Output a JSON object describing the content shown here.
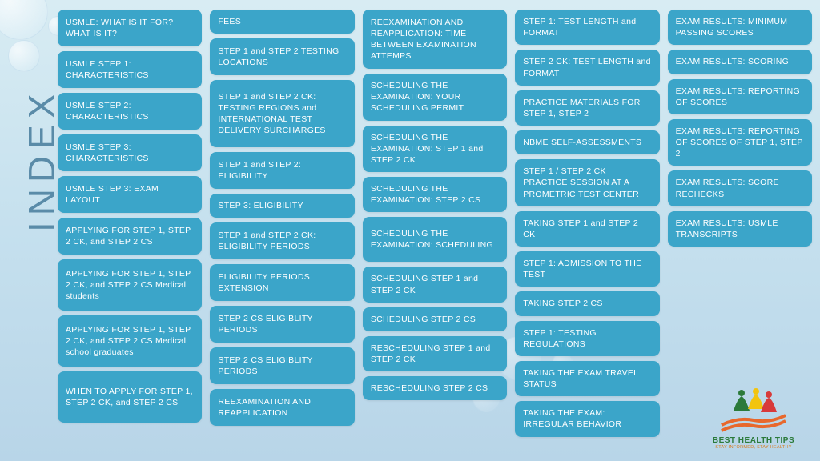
{
  "title": "INDEX",
  "card_bg": "#3ba5c9",
  "card_text": "#ffffff",
  "columns": [
    [
      "USMLE: WHAT IS IT FOR? WHAT IS IT?",
      "USMLE STEP 1: CHARACTERISTICS",
      "USMLE STEP 2: CHARACTERISTICS",
      "USMLE STEP 3: CHARACTERISTICS",
      "USMLE STEP 3: EXAM LAYOUT",
      "APPLYING FOR STEP 1, STEP 2 CK, and STEP 2 CS",
      "APPLYING FOR STEP 1, STEP 2 CK, and STEP 2 CS Medical students",
      "APPLYING FOR STEP 1, STEP 2 CK, and STEP 2 CS Medical school graduates",
      "WHEN TO APPLY FOR STEP 1, STEP 2 CK, and STEP 2 CS"
    ],
    [
      "FEES",
      "STEP 1 and STEP 2 TESTING LOCATIONS",
      "STEP 1 and STEP 2 CK: TESTING REGIONS and INTERNATIONAL TEST DELIVERY SURCHARGES",
      "STEP 1 and STEP 2: ELIGIBILITY",
      "STEP 3: ELIGIBILITY",
      "STEP 1 and STEP 2 CK: ELIGIBILITY PERIODS",
      "ELIGIBILITY PERIODS EXTENSION",
      "STEP 2 CS ELIGIBLITY PERIODS",
      "STEP 2 CS ELIGIBLITY PERIODS",
      "REEXAMINATION AND REAPPLICATION"
    ],
    [
      "REEXAMINATION AND REAPPLICATION: TIME BETWEEN EXAMINATION ATTEMPS",
      "SCHEDULING THE EXAMINATION: YOUR SCHEDULING PERMIT",
      "SCHEDULING THE EXAMINATION: STEP 1 and STEP 2 CK",
      "SCHEDULING THE EXAMINATION: STEP 2 CS",
      "SCHEDULING THE EXAMINATION: SCHEDULING",
      "SCHEDULING STEP 1 and STEP 2 CK",
      "SCHEDULING STEP 2 CS",
      "RESCHEDULING STEP 1 and STEP 2 CK",
      "RESCHEDULING STEP 2 CS"
    ],
    [
      "STEP 1: TEST LENGTH and FORMAT",
      "STEP 2 CK: TEST LENGTH and FORMAT",
      "PRACTICE MATERIALS FOR STEP 1, STEP 2",
      "NBME SELF-ASSESSMENTS",
      "STEP 1 / STEP 2 CK PRACTICE SESSION AT A PROMETRIC TEST CENTER",
      "TAKING STEP 1 and STEP 2 CK",
      "STEP 1: ADMISSION TO THE TEST",
      "TAKING STEP 2 CS",
      "STEP 1: TESTING REGULATIONS",
      "TAKING THE EXAM TRAVEL STATUS",
      "TAKING THE EXAM: IRREGULAR BEHAVIOR"
    ],
    [
      "EXAM RESULTS: MINIMUM PASSING SCORES",
      "EXAM RESULTS: SCORING",
      "EXAM RESULTS: REPORTING OF SCORES",
      "EXAM RESULTS: REPORTING OF SCORES OF STEP 1, STEP 2",
      "EXAM RESULTS: SCORE RECHECKS",
      "EXAM RESULTS: USMLE TRANSCRIPTS"
    ]
  ],
  "heights": [
    [
      46,
      46,
      46,
      46,
      46,
      46,
      64,
      64,
      64
    ],
    [
      30,
      46,
      84,
      46,
      30,
      46,
      46,
      46,
      46,
      46
    ],
    [
      74,
      56,
      56,
      44,
      56,
      44,
      30,
      44,
      30
    ],
    [
      42,
      42,
      42,
      30,
      54,
      42,
      42,
      30,
      42,
      42,
      42
    ],
    [
      42,
      30,
      42,
      54,
      42,
      42
    ]
  ],
  "logo": {
    "title": "BEST HEALTH TIPS",
    "subtitle": "STAY INFORMED, STAY HEALTHY"
  }
}
